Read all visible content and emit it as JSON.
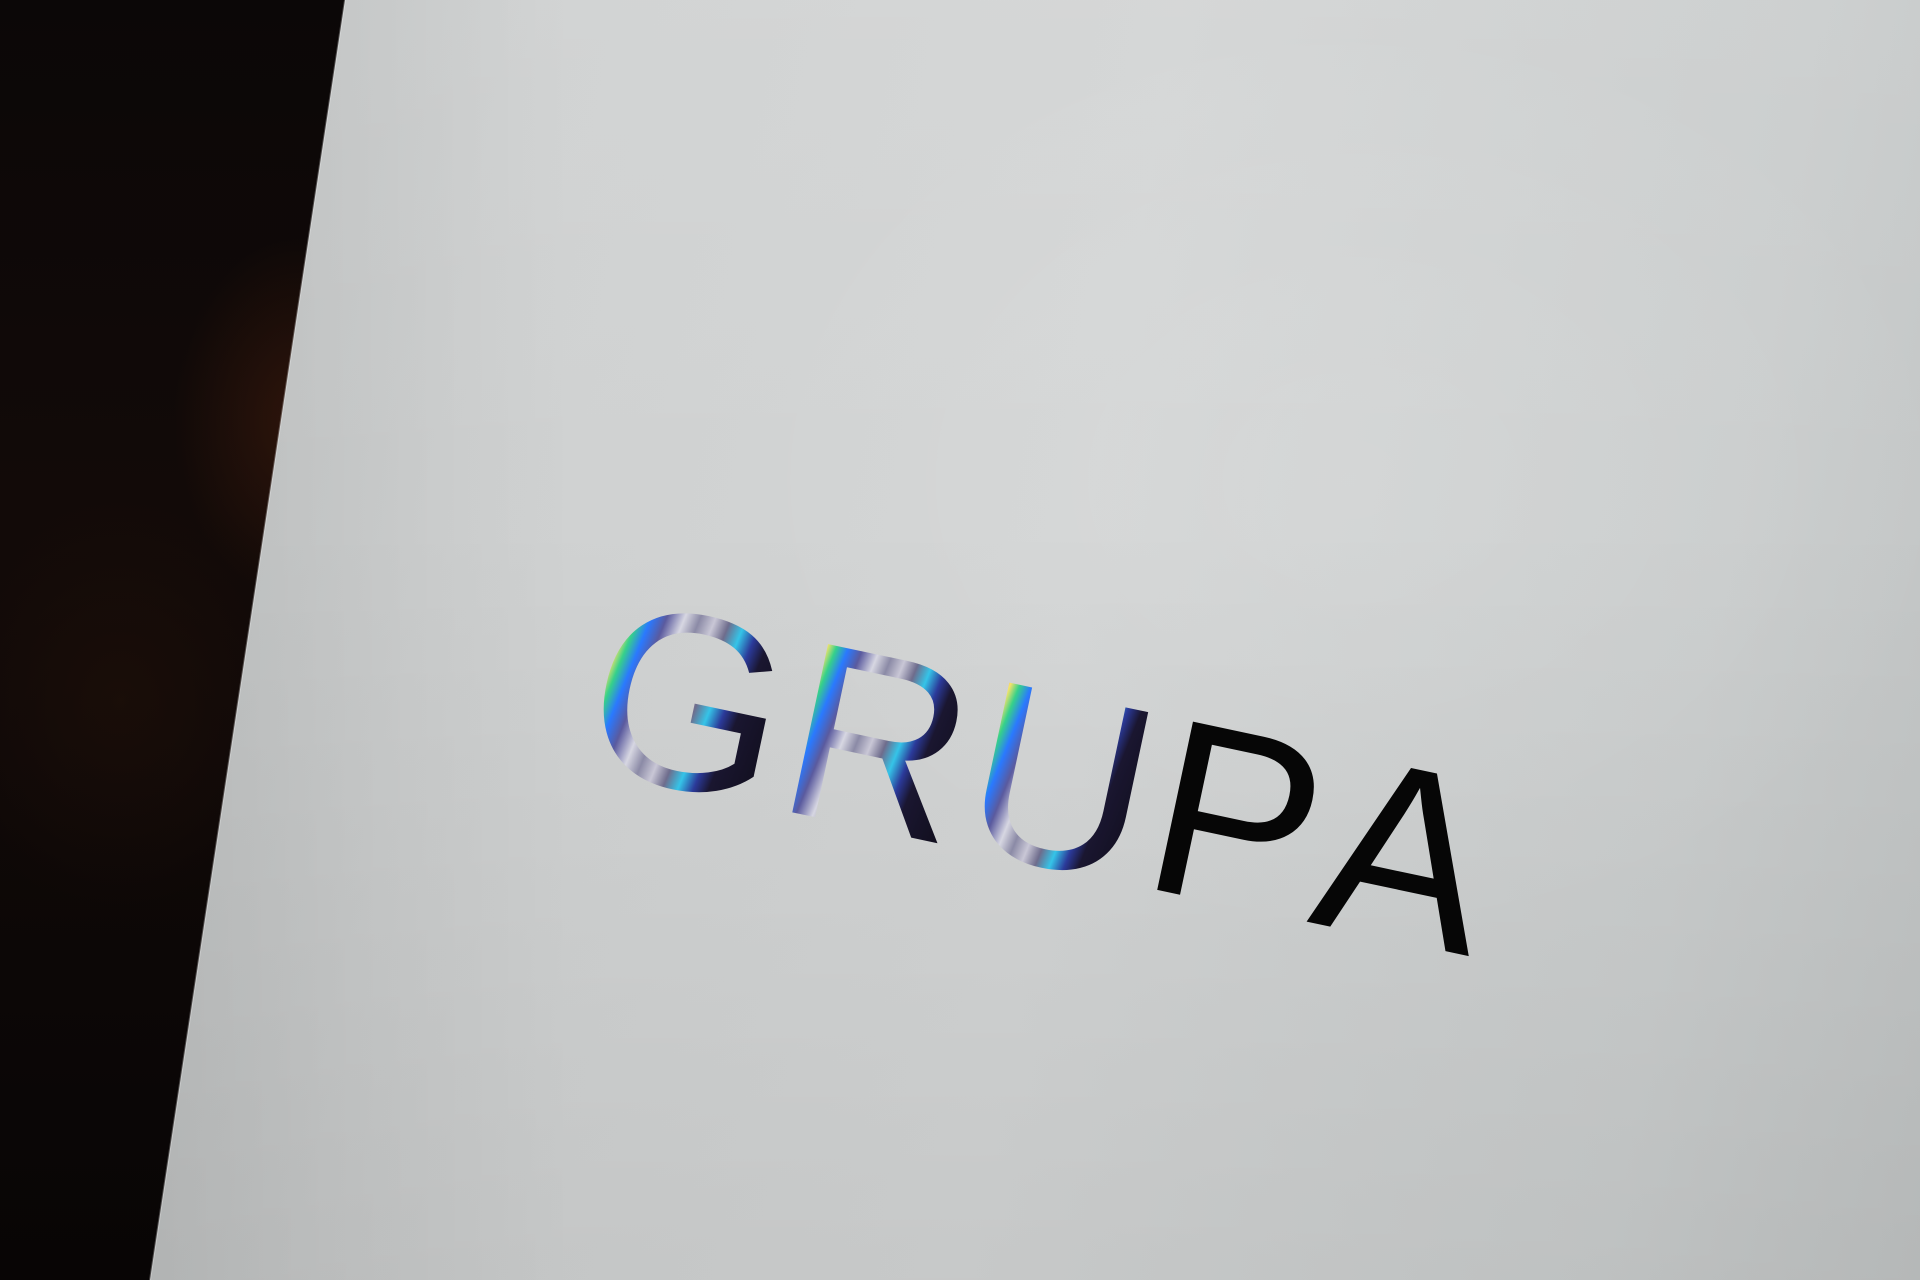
{
  "logo": {
    "text": "GRUPA",
    "letters": [
      "G",
      "R",
      "U",
      "P",
      "A"
    ]
  },
  "colors": {
    "paper": "#cfd1d1",
    "background": "#0a0706",
    "ink": "#060606",
    "foil_accents": [
      "#ff4e50",
      "#ff9a3c",
      "#36d18a",
      "#2a79ff",
      "#35c4e8"
    ]
  }
}
